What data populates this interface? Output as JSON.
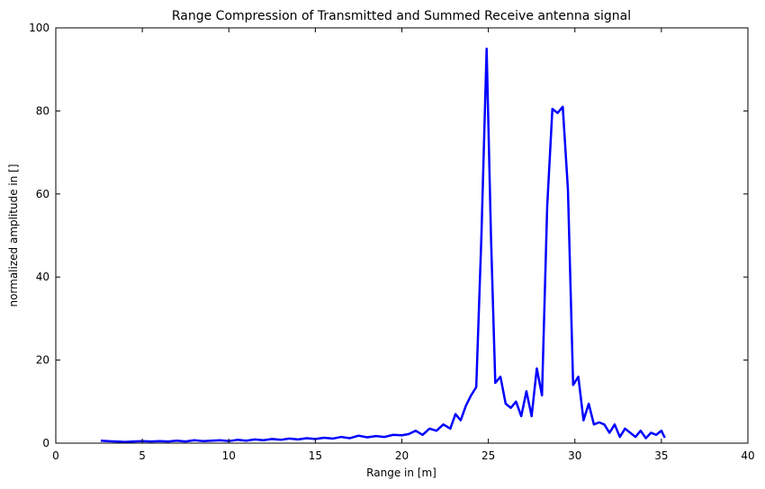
{
  "chart_data": {
    "type": "line",
    "title": "Range Compression of Transmitted and Summed   Receive antenna signal",
    "xlabel": "Range in [m]",
    "ylabel": "normalized amplitude in []",
    "xlim": [
      0,
      40
    ],
    "ylim": [
      0,
      100
    ],
    "xticks": [
      0,
      5,
      10,
      15,
      20,
      25,
      30,
      35,
      40
    ],
    "yticks": [
      0,
      20,
      40,
      60,
      80,
      100
    ],
    "grid": false,
    "series": [
      {
        "color": "#0000ff",
        "x": [
          2.6,
          3.0,
          3.5,
          4.0,
          4.5,
          5.0,
          5.5,
          6.0,
          6.5,
          7.0,
          7.5,
          8.0,
          8.5,
          9.0,
          9.5,
          10.0,
          10.5,
          11.0,
          11.5,
          12.0,
          12.5,
          13.0,
          13.5,
          14.0,
          14.5,
          15.0,
          15.5,
          16.0,
          16.5,
          17.0,
          17.5,
          18.0,
          18.5,
          19.0,
          19.5,
          20.0,
          20.4,
          20.8,
          21.2,
          21.6,
          22.0,
          22.4,
          22.8,
          23.1,
          23.4,
          23.7,
          24.0,
          24.3,
          24.6,
          24.9,
          25.15,
          25.4,
          25.7,
          26.0,
          26.3,
          26.6,
          26.9,
          27.2,
          27.5,
          27.8,
          28.1,
          28.4,
          28.7,
          29.0,
          29.3,
          29.6,
          29.9,
          30.2,
          30.5,
          30.8,
          31.1,
          31.4,
          31.7,
          32.0,
          32.3,
          32.6,
          32.9,
          33.2,
          33.5,
          33.8,
          34.1,
          34.4,
          34.7,
          35.0,
          35.2
        ],
        "y": [
          0.6,
          0.5,
          0.4,
          0.3,
          0.4,
          0.5,
          0.4,
          0.5,
          0.4,
          0.6,
          0.4,
          0.7,
          0.5,
          0.6,
          0.7,
          0.5,
          0.8,
          0.6,
          0.9,
          0.7,
          1.0,
          0.8,
          1.1,
          0.9,
          1.2,
          1.0,
          1.3,
          1.1,
          1.5,
          1.2,
          1.8,
          1.4,
          1.7,
          1.5,
          2.0,
          1.9,
          2.2,
          3.0,
          2.0,
          3.5,
          3.0,
          4.5,
          3.5,
          7.0,
          5.5,
          9.0,
          11.5,
          13.5,
          50.0,
          95.0,
          50.0,
          14.5,
          16.0,
          9.5,
          8.5,
          10.0,
          6.5,
          12.5,
          6.5,
          18.0,
          11.5,
          57.0,
          80.5,
          79.5,
          81.0,
          61.0,
          14.0,
          16.0,
          5.5,
          9.5,
          4.5,
          5.0,
          4.5,
          2.5,
          4.5,
          1.5,
          3.5,
          2.5,
          1.5,
          3.0,
          1.2,
          2.5,
          2.0,
          3.0,
          1.3
        ]
      }
    ]
  }
}
